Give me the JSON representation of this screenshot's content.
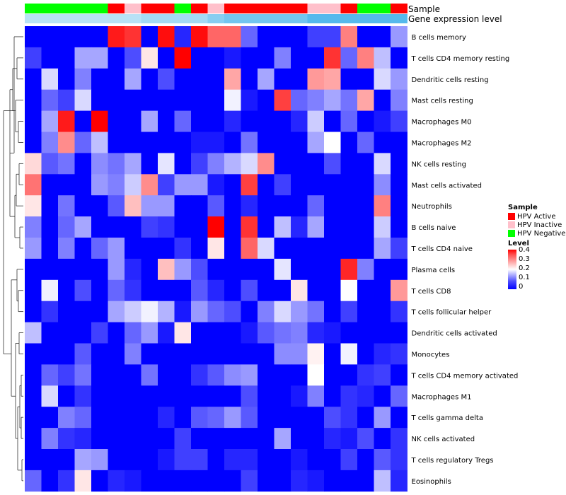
{
  "chart_data": {
    "type": "heatmap",
    "annotation_labels": [
      "Sample",
      "Gene expression level"
    ],
    "rows": [
      "B cells memory",
      "T cells CD4 memory resting",
      "Dendritic cells resting",
      "Mast cells resting",
      "Macrophages M0",
      "Macrophages M2",
      "NK cells resting",
      "Mast cells activated",
      "Neutrophils",
      "B cells naive",
      "T cells CD4 naive",
      "Plasma cells",
      "T cells CD8",
      "T cells follicular helper",
      "Dendritic cells activated",
      "Monocytes",
      "T cells CD4 memory activated",
      "Macrophages M1",
      "T cells gamma delta",
      "NK cells activated",
      "T cells regulatory  Tregs",
      "Eosinophils"
    ],
    "sample_groups": [
      "HPV Negative",
      "HPV Negative",
      "HPV Negative",
      "HPV Negative",
      "HPV Negative",
      "HPV Active",
      "HPV Inactive",
      "HPV Active",
      "HPV Active",
      "HPV Negative",
      "HPV Active",
      "HPV Inactive",
      "HPV Active",
      "HPV Active",
      "HPV Active",
      "HPV Active",
      "HPV Active",
      "HPV Inactive",
      "HPV Inactive",
      "HPV Active",
      "HPV Negative",
      "HPV Negative",
      "HPV Active"
    ],
    "expression_bar": [
      0.05,
      0.05,
      0.05,
      0.05,
      0.05,
      0.05,
      0.05,
      0.07,
      0.07,
      0.07,
      0.07,
      0.1,
      0.12,
      0.12,
      0.12,
      0.12,
      0.12,
      0.15,
      0.15,
      0.15,
      0.15,
      0.15,
      0.15
    ],
    "values": [
      [
        0,
        0,
        0,
        0,
        0,
        0.38,
        0.36,
        0,
        0.39,
        0.03,
        0.39,
        0.32,
        0.32,
        0.08,
        0,
        0,
        0,
        0.05,
        0.05,
        0.3,
        0,
        0,
        0.12
      ],
      [
        0.05,
        0,
        0,
        0.13,
        0.13,
        0,
        0.06,
        0.22,
        0,
        0.4,
        0,
        0,
        0.02,
        0,
        0,
        0.1,
        0,
        0,
        0.36,
        0.08,
        0.3,
        0.15,
        0
      ],
      [
        0,
        0.17,
        0,
        0.1,
        0,
        0,
        0.13,
        0,
        0.06,
        0,
        0,
        0,
        0.27,
        0,
        0.13,
        0,
        0,
        0.28,
        0.27,
        0,
        0,
        0.17,
        0.12
      ],
      [
        0,
        0.08,
        0.05,
        0.17,
        0,
        0,
        0,
        0,
        0,
        0,
        0,
        0,
        0.19,
        0.02,
        0,
        0.35,
        0.08,
        0.1,
        0.13,
        0.09,
        0.27,
        0,
        0.1
      ],
      [
        0,
        0.13,
        0.38,
        0,
        0.4,
        0,
        0,
        0.13,
        0,
        0.08,
        0,
        0,
        0.03,
        0,
        0,
        0,
        0.03,
        0.16,
        0,
        0.08,
        0,
        0.02,
        0.05
      ],
      [
        0,
        0.1,
        0.29,
        0.08,
        0.15,
        0,
        0,
        0,
        0,
        0,
        0.02,
        0.02,
        0,
        0.09,
        0,
        0,
        0,
        0.13,
        0.2,
        0,
        0.08,
        0,
        0
      ],
      [
        0.23,
        0.07,
        0.09,
        0,
        0.11,
        0.09,
        0.13,
        0,
        0.18,
        0,
        0.05,
        0.1,
        0.14,
        0.17,
        0.29,
        0,
        0,
        0,
        0.06,
        0,
        0,
        0.17,
        0
      ],
      [
        0.31,
        0,
        0,
        0,
        0.12,
        0.1,
        0.16,
        0.29,
        0.05,
        0.12,
        0.12,
        0.02,
        0,
        0.35,
        0,
        0.05,
        0,
        0,
        0,
        0,
        0,
        0.11,
        0
      ],
      [
        0.22,
        0,
        0.09,
        0,
        0,
        0.07,
        0.25,
        0.12,
        0.12,
        0,
        0,
        0.07,
        0,
        0.03,
        0,
        0,
        0,
        0.08,
        0,
        0,
        0,
        0.3,
        0
      ],
      [
        0.1,
        0,
        0.08,
        0.13,
        0,
        0,
        0,
        0.05,
        0.04,
        0,
        0,
        0.4,
        0,
        0.36,
        0,
        0.15,
        0.03,
        0.13,
        0,
        0,
        0,
        0.16,
        0
      ],
      [
        0.12,
        0,
        0.1,
        0,
        0.08,
        0.12,
        0,
        0,
        0,
        0.04,
        0,
        0.22,
        0,
        0.32,
        0.17,
        0,
        0,
        0,
        0,
        0,
        0,
        0.13,
        0.05
      ],
      [
        0,
        0,
        0,
        0,
        0,
        0.12,
        0.03,
        0,
        0.25,
        0.12,
        0.06,
        0,
        0,
        0,
        0,
        0.18,
        0,
        0,
        0,
        0.37,
        0.1,
        0,
        0
      ],
      [
        0,
        0.19,
        0,
        0.06,
        0,
        0.08,
        0.04,
        0,
        0,
        0,
        0.07,
        0.03,
        0,
        0.06,
        0,
        0,
        0.22,
        0,
        0,
        0.2,
        0,
        0,
        0.28
      ],
      [
        0,
        0.04,
        0,
        0,
        0,
        0.13,
        0.16,
        0.19,
        0.14,
        0.02,
        0.12,
        0.08,
        0.06,
        0,
        0.1,
        0.17,
        0.12,
        0.09,
        0,
        0.05,
        0,
        0,
        0.04
      ],
      [
        0.15,
        0,
        0,
        0,
        0.05,
        0,
        0.08,
        0.12,
        0.02,
        0.22,
        0,
        0,
        0,
        0.02,
        0.07,
        0.09,
        0.1,
        0.03,
        0.02,
        0,
        0,
        0,
        0
      ],
      [
        0,
        0,
        0,
        0.07,
        0,
        0,
        0.1,
        0,
        0,
        0,
        0,
        0,
        0,
        0,
        0,
        0.11,
        0.11,
        0.21,
        0,
        0.19,
        0,
        0.03,
        0.04
      ],
      [
        0,
        0.08,
        0.05,
        0.09,
        0,
        0,
        0,
        0.09,
        0,
        0,
        0.04,
        0.07,
        0.11,
        0.12,
        0,
        0,
        0,
        0.2,
        0,
        0,
        0.04,
        0.05,
        0
      ],
      [
        0,
        0.17,
        0,
        0.04,
        0,
        0,
        0,
        0,
        0,
        0,
        0,
        0,
        0,
        0.06,
        0,
        0,
        0.02,
        0.1,
        0,
        0.04,
        0.03,
        0,
        0.08
      ],
      [
        0,
        0,
        0.1,
        0.08,
        0,
        0,
        0,
        0,
        0.03,
        0,
        0.07,
        0.08,
        0.12,
        0.07,
        0,
        0,
        0,
        0,
        0.06,
        0.04,
        0,
        0.12,
        0
      ],
      [
        0,
        0.1,
        0.04,
        0.03,
        0,
        0,
        0,
        0,
        0,
        0.05,
        0,
        0,
        0,
        0,
        0,
        0.13,
        0,
        0,
        0.03,
        0.02,
        0.06,
        0,
        0.04
      ],
      [
        0,
        0,
        0,
        0.13,
        0.12,
        0,
        0,
        0,
        0.02,
        0.05,
        0.05,
        0,
        0.03,
        0.03,
        0,
        0,
        0.02,
        0,
        0,
        0.05,
        0,
        0.07,
        0.04
      ],
      [
        0.08,
        0,
        0.04,
        0.22,
        0,
        0.03,
        0.02,
        0,
        0,
        0,
        0,
        0,
        0,
        0.05,
        0,
        0,
        0.03,
        0.02,
        0,
        0,
        0,
        0.15,
        0.03
      ]
    ],
    "legend": {
      "sample_title": "Sample",
      "sample_entries": [
        {
          "label": "HPV Active",
          "color": "#ff0000"
        },
        {
          "label": "HPV Inactive",
          "color": "#ffc0cb"
        },
        {
          "label": "HPV Negative",
          "color": "#00ff00"
        }
      ],
      "level_title": "Level",
      "level_ticks": [
        "0.4",
        "0.3",
        "0.2",
        "0.1",
        "0"
      ],
      "level_range": [
        0,
        0.4
      ]
    },
    "colors": {
      "low": "#0000ff",
      "mid": "#ffffff",
      "high": "#ff0000"
    },
    "expression_colors": {
      "low": "#b8e2f6",
      "high": "#56b9ec"
    }
  }
}
